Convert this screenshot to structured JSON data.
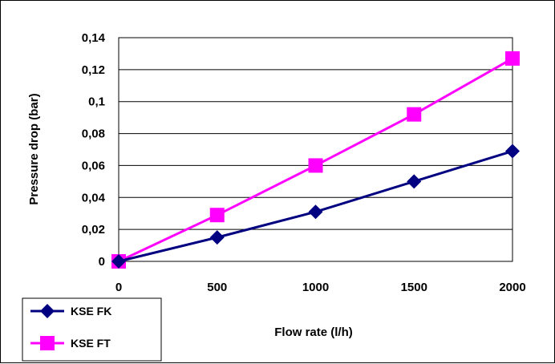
{
  "chart_data": {
    "type": "line",
    "title": "",
    "xlabel": "Flow rate (l/h)",
    "ylabel": "Pressure drop (bar)",
    "x": [
      0,
      500,
      1000,
      1500,
      2000
    ],
    "x_tick_labels": [
      "0",
      "500",
      "1000",
      "1500",
      "2000"
    ],
    "y_tick_labels": [
      "0",
      "0,02",
      "0,04",
      "0,06",
      "0,08",
      "0,1",
      "0,12",
      "0,14"
    ],
    "xlim": [
      0,
      2000
    ],
    "ylim": [
      0,
      0.14
    ],
    "grid": "horizontal",
    "legend_position": "bottom-left",
    "series": [
      {
        "name": "KSE FK",
        "values": [
          0,
          0.015,
          0.031,
          0.05,
          0.069
        ],
        "color": "#000080",
        "marker": "diamond"
      },
      {
        "name": "KSE FT",
        "values": [
          0,
          0.029,
          0.06,
          0.092,
          0.127
        ],
        "color": "#FF00FF",
        "marker": "square"
      }
    ]
  }
}
